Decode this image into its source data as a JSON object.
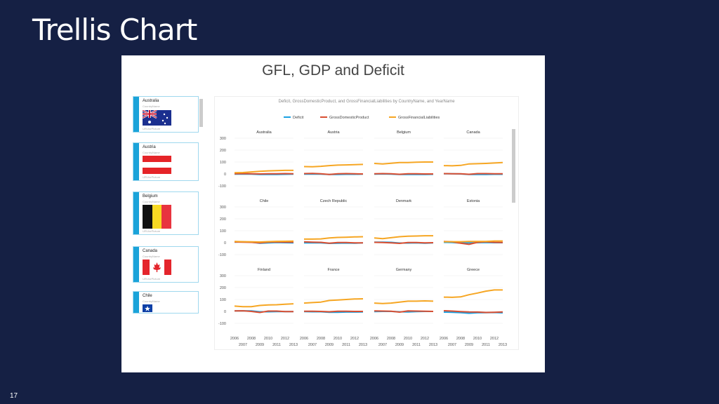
{
  "slide": {
    "title": "Trellis Chart",
    "page_number": "17"
  },
  "report": {
    "title": "GFL, GDP and Deficit"
  },
  "sidebar": {
    "field_label": "CountryName",
    "picture_label": "URLforPicture",
    "cards": [
      {
        "name": "Australia",
        "flag": "australia-flag"
      },
      {
        "name": "Austria",
        "flag": "austria-flag"
      },
      {
        "name": "Belgium",
        "flag": "belgium-flag"
      },
      {
        "name": "Canada",
        "flag": "canada-flag"
      },
      {
        "name": "Chile",
        "flag": "chile-flag"
      }
    ]
  },
  "colors": {
    "deficit": "#1ba1e2",
    "gdp": "#d94f32",
    "gfl": "#f6a623",
    "accent": "#1aa3d9",
    "background": "#152044"
  },
  "chart_data": {
    "type": "line",
    "title": "Deficit, GrossDomesticProduct, and GrossFinancialLiabilities by CountryName, and YearName",
    "legend_position": "top",
    "legend": [
      "Deficit",
      "GrossDomesticProduct",
      "GrossFinancialLiabilities"
    ],
    "x": [
      "2006",
      "2007",
      "2008",
      "2009",
      "2010",
      "2011",
      "2012",
      "2013"
    ],
    "x_ticks_top": [
      "2006",
      "2008",
      "2010",
      "2012"
    ],
    "x_ticks_bottom": [
      "2007",
      "2009",
      "2011",
      "2013"
    ],
    "y_ticks": [
      "300",
      "200",
      "100",
      "0",
      "-100"
    ],
    "ylim": [
      -100,
      300
    ],
    "grid": true,
    "panels": [
      {
        "country": "Australia",
        "series": [
          [
            -1,
            -1,
            -2,
            -4,
            -5,
            -4,
            -3,
            -2
          ],
          [
            2,
            3,
            1,
            0,
            1,
            2,
            3,
            2
          ],
          [
            10,
            12,
            17,
            22,
            26,
            28,
            30,
            30
          ]
        ]
      },
      {
        "country": "Austria",
        "series": [
          [
            -2,
            -1,
            -1,
            -4,
            -5,
            -3,
            -3,
            -2
          ],
          [
            3,
            4,
            2,
            -4,
            1,
            3,
            1,
            0
          ],
          [
            62,
            60,
            64,
            70,
            74,
            76,
            78,
            80
          ]
        ]
      },
      {
        "country": "Belgium",
        "series": [
          [
            -1,
            0,
            -1,
            -5,
            -4,
            -4,
            -4,
            -3
          ],
          [
            2,
            3,
            1,
            -3,
            2,
            2,
            0,
            0
          ],
          [
            88,
            84,
            90,
            96,
            96,
            98,
            100,
            100
          ]
        ]
      },
      {
        "country": "Canada",
        "series": [
          [
            1,
            1,
            0,
            -4,
            -5,
            -4,
            -3,
            -3
          ],
          [
            3,
            2,
            1,
            -3,
            3,
            3,
            2,
            2
          ],
          [
            70,
            68,
            72,
            84,
            86,
            88,
            92,
            96
          ]
        ]
      },
      {
        "country": "Chile",
        "series": [
          [
            4,
            7,
            4,
            -4,
            -1,
            1,
            0,
            -1
          ],
          [
            6,
            5,
            3,
            -1,
            5,
            6,
            5,
            4
          ],
          [
            10,
            8,
            7,
            6,
            9,
            11,
            12,
            13
          ]
        ]
      },
      {
        "country": "Czech Republic",
        "series": [
          [
            -2,
            -1,
            -2,
            -6,
            -5,
            -3,
            -4,
            -2
          ],
          [
            7,
            5,
            3,
            -5,
            2,
            2,
            -1,
            -1
          ],
          [
            30,
            30,
            32,
            40,
            44,
            46,
            48,
            50
          ]
        ]
      },
      {
        "country": "Denmark",
        "series": [
          [
            5,
            5,
            3,
            -3,
            -3,
            -2,
            -4,
            -1
          ],
          [
            3,
            1,
            -1,
            -6,
            2,
            1,
            -1,
            0
          ],
          [
            40,
            34,
            42,
            50,
            54,
            56,
            58,
            58
          ]
        ]
      },
      {
        "country": "Estonia",
        "series": [
          [
            3,
            2,
            -3,
            -2,
            0,
            1,
            0,
            0
          ],
          [
            10,
            7,
            -4,
            -14,
            3,
            7,
            3,
            2
          ],
          [
            8,
            8,
            8,
            10,
            10,
            10,
            14,
            14
          ]
        ]
      },
      {
        "country": "Finland",
        "series": [
          [
            4,
            5,
            4,
            -3,
            -3,
            -1,
            -2,
            -2
          ],
          [
            4,
            5,
            0,
            -9,
            3,
            3,
            -1,
            -1
          ],
          [
            45,
            40,
            40,
            50,
            54,
            56,
            60,
            64
          ]
        ]
      },
      {
        "country": "France",
        "series": [
          [
            -2,
            -3,
            -3,
            -7,
            -7,
            -5,
            -5,
            -4
          ],
          [
            2,
            2,
            0,
            -3,
            2,
            2,
            0,
            0
          ],
          [
            70,
            74,
            78,
            92,
            96,
            100,
            104,
            106
          ]
        ]
      },
      {
        "country": "Germany",
        "series": [
          [
            -2,
            0,
            0,
            -3,
            -4,
            -1,
            0,
            0
          ],
          [
            4,
            3,
            1,
            -6,
            4,
            3,
            1,
            0
          ],
          [
            70,
            66,
            70,
            78,
            86,
            86,
            88,
            86
          ]
        ]
      },
      {
        "country": "Greece",
        "series": [
          [
            -6,
            -7,
            -10,
            -15,
            -11,
            -10,
            -9,
            -12
          ],
          [
            6,
            3,
            -1,
            -4,
            -5,
            -9,
            -7,
            -4
          ],
          [
            120,
            118,
            122,
            140,
            154,
            170,
            180,
            180
          ]
        ]
      }
    ]
  }
}
